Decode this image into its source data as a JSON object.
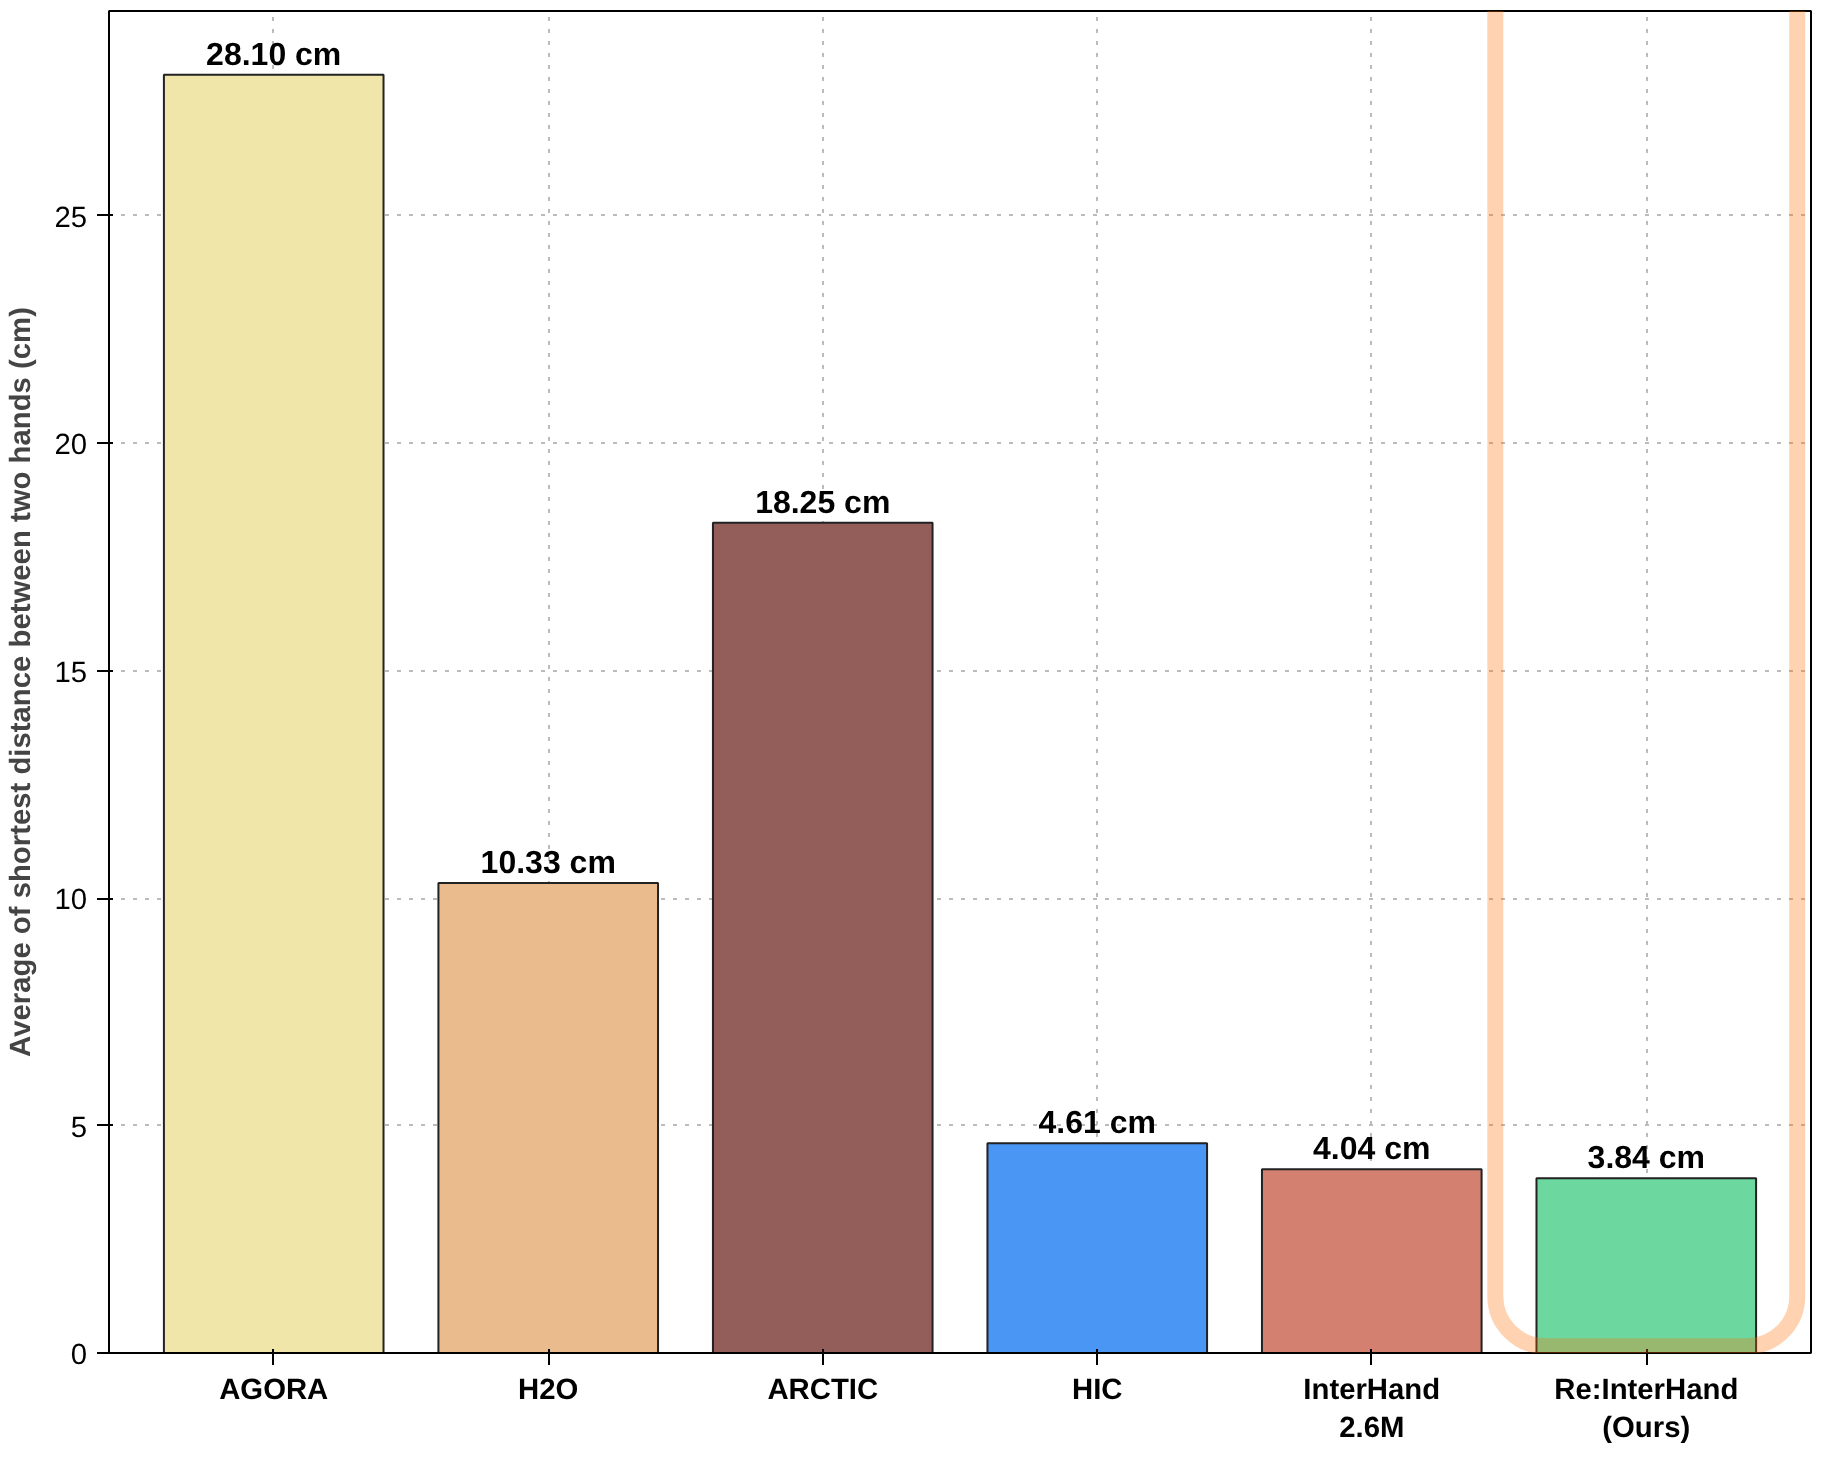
{
  "chart_data": {
    "type": "bar",
    "ylabel": "Average of shortest distance between two hands (cm)",
    "categories": [
      "AGORA",
      "H2O",
      "ARCTIC",
      "HIC",
      "InterHand\n2.6M",
      "Re:InterHand\n(Ours)"
    ],
    "values": [
      28.1,
      10.33,
      18.25,
      4.61,
      4.04,
      3.84
    ],
    "colors": [
      "#f0e6aa",
      "#eabb8c",
      "#935e59",
      "#4a96f5",
      "#d38070",
      "#6cd8a0"
    ],
    "value_labels": [
      "28.10 cm",
      "10.33 cm",
      "18.25 cm",
      "4.61 cm",
      "4.04 cm",
      "3.84 cm"
    ],
    "ylim": [
      0,
      29.5
    ],
    "yticks": [
      0,
      5,
      10,
      15,
      20,
      25
    ],
    "grid": true
  }
}
